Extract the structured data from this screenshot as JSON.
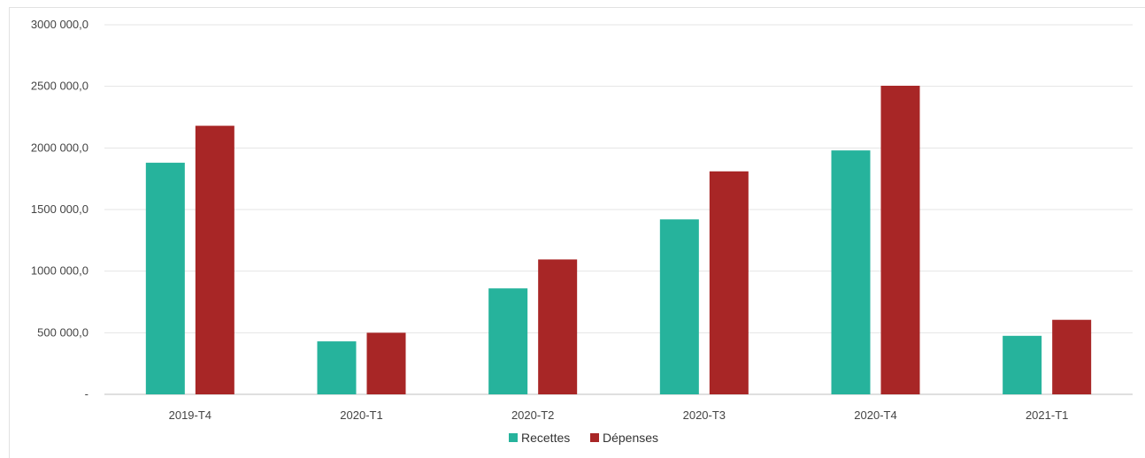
{
  "chart_data": {
    "type": "bar",
    "categories": [
      "2019-T4",
      "2020-T1",
      "2020-T2",
      "2020-T3",
      "2020-T4",
      "2021-T1"
    ],
    "series": [
      {
        "name": "Recettes",
        "color": "#26b39c",
        "values": [
          1880000,
          430000,
          860000,
          1420000,
          1980000,
          475000
        ]
      },
      {
        "name": "Dépenses",
        "color": "#a82626",
        "values": [
          2180000,
          500000,
          1095000,
          1810000,
          2505000,
          605000
        ]
      }
    ],
    "ylim": [
      0,
      3000000
    ],
    "yticks": [
      0,
      500000,
      1000000,
      1500000,
      2000000,
      2500000,
      3000000
    ],
    "ytick_labels": [
      "-",
      "500 000,0",
      "1000 000,0",
      "1500 000,0",
      "2000 000,0",
      "2500 000,0",
      "3000 000,0"
    ],
    "grid": true,
    "legend_position": "bottom",
    "title": "",
    "xlabel": "",
    "ylabel": ""
  }
}
